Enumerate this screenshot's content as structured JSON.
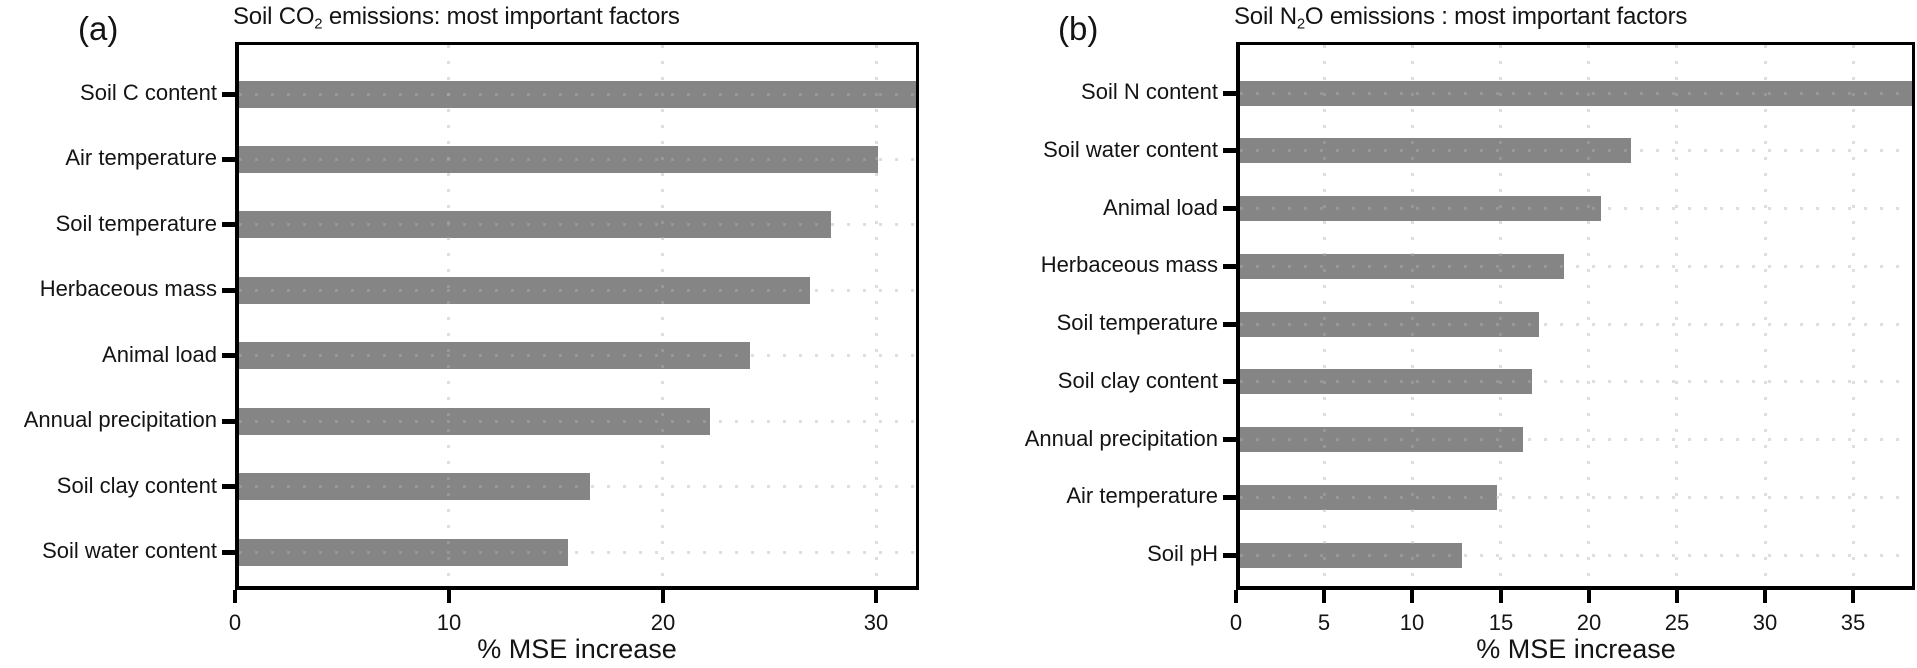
{
  "chart_data": [
    {
      "type": "bar",
      "orientation": "horizontal",
      "panel_label": "(a)",
      "title_plain": "Soil CO2 emissions: most important factors",
      "title_segments": [
        {
          "text": "Soil CO",
          "sub": false
        },
        {
          "text": "2",
          "sub": true
        },
        {
          "text": " emissions: most important factors",
          "sub": false
        }
      ],
      "categories": [
        "Soil C content",
        "Air temperature",
        "Soil temperature",
        "Herbaceous mass",
        "Animal load",
        "Annual precipitation",
        "Soil clay content",
        "Soil water content"
      ],
      "values": [
        32,
        30.1,
        27.9,
        26.9,
        24.1,
        22.2,
        16.6,
        15.6
      ],
      "xlabel": "% MSE increase",
      "xlim": [
        0,
        32
      ],
      "xticks": [
        0,
        10,
        20,
        30
      ],
      "grid_x": [
        10,
        20,
        30
      ],
      "grid_style": "dotted",
      "legend": "none",
      "bar_color": "#858585"
    },
    {
      "type": "bar",
      "orientation": "horizontal",
      "panel_label": "(b)",
      "title_plain": "Soil N2O emissions : most important factors",
      "title_segments": [
        {
          "text": "Soil N",
          "sub": false
        },
        {
          "text": "2",
          "sub": true
        },
        {
          "text": "O emissions : most important factors",
          "sub": false
        }
      ],
      "categories": [
        "Soil N content",
        "Soil water content",
        "Animal load",
        "Herbaceous mass",
        "Soil temperature",
        "Soil clay content",
        "Annual precipitation",
        "Air temperature",
        "Soil pH"
      ],
      "values": [
        38.5,
        22.4,
        20.7,
        18.6,
        17.2,
        16.8,
        16.3,
        14.8,
        12.8
      ],
      "xlabel": "% MSE increase",
      "xlim": [
        0,
        38.5
      ],
      "xticks": [
        0,
        5,
        10,
        15,
        20,
        25,
        30,
        35
      ],
      "grid_x": [
        5,
        10,
        15,
        20,
        25,
        30,
        35
      ],
      "grid_style": "dotted",
      "legend": "none",
      "bar_color": "#858585"
    }
  ],
  "colors": {
    "bar": "#858585",
    "axis": "#000000",
    "text": "#141414",
    "grid_dot": "#e2e2e2",
    "background": "#ffffff"
  }
}
